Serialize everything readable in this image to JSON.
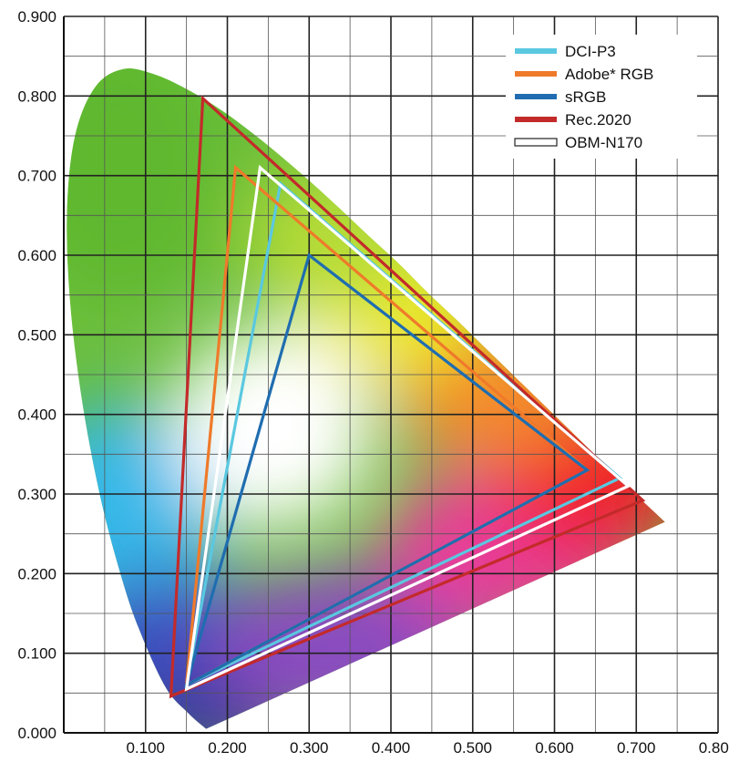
{
  "chart_data": {
    "type": "chromaticity-diagram",
    "xlim": [
      0.0,
      0.8
    ],
    "ylim": [
      0.0,
      0.9
    ],
    "grid": true,
    "x_ticks": [
      {
        "value": 0.1,
        "label": "0.100"
      },
      {
        "value": 0.2,
        "label": "0.200"
      },
      {
        "value": 0.3,
        "label": "0.300"
      },
      {
        "value": 0.4,
        "label": "0.400"
      },
      {
        "value": 0.5,
        "label": "0.500"
      },
      {
        "value": 0.6,
        "label": "0.600"
      },
      {
        "value": 0.7,
        "label": "0.700"
      },
      {
        "value": 0.8,
        "label": "0.800"
      }
    ],
    "y_ticks": [
      {
        "value": 0.0,
        "label": "0.000"
      },
      {
        "value": 0.1,
        "label": "0.100"
      },
      {
        "value": 0.2,
        "label": "0.200"
      },
      {
        "value": 0.3,
        "label": "0.300"
      },
      {
        "value": 0.4,
        "label": "0.400"
      },
      {
        "value": 0.5,
        "label": "0.500"
      },
      {
        "value": 0.6,
        "label": "0.600"
      },
      {
        "value": 0.7,
        "label": "0.700"
      },
      {
        "value": 0.8,
        "label": "0.800"
      },
      {
        "value": 0.9,
        "label": "0.900"
      }
    ],
    "legend_position": "top-right",
    "spectral_locus": [
      [
        0.174,
        0.005
      ],
      [
        0.152,
        0.025
      ],
      [
        0.124,
        0.058
      ],
      [
        0.091,
        0.133
      ],
      [
        0.069,
        0.201
      ],
      [
        0.045,
        0.295
      ],
      [
        0.023,
        0.413
      ],
      [
        0.008,
        0.538
      ],
      [
        0.004,
        0.655
      ],
      [
        0.014,
        0.751
      ],
      [
        0.039,
        0.812
      ],
      [
        0.074,
        0.834
      ],
      [
        0.114,
        0.826
      ],
      [
        0.155,
        0.806
      ],
      [
        0.193,
        0.782
      ],
      [
        0.23,
        0.754
      ],
      [
        0.266,
        0.724
      ],
      [
        0.302,
        0.692
      ],
      [
        0.337,
        0.659
      ],
      [
        0.373,
        0.624
      ],
      [
        0.409,
        0.59
      ],
      [
        0.444,
        0.554
      ],
      [
        0.479,
        0.52
      ],
      [
        0.512,
        0.487
      ],
      [
        0.548,
        0.451
      ],
      [
        0.585,
        0.414
      ],
      [
        0.626,
        0.373
      ],
      [
        0.665,
        0.334
      ],
      [
        0.705,
        0.294
      ],
      [
        0.735,
        0.265
      ]
    ],
    "series": [
      {
        "name": "DCI-P3",
        "color": "#5ac8e0",
        "points": [
          [
            0.68,
            0.32
          ],
          [
            0.265,
            0.69
          ],
          [
            0.15,
            0.06
          ]
        ]
      },
      {
        "name": "Adobe* RGB",
        "color": "#ef7a2a",
        "points": [
          [
            0.64,
            0.33
          ],
          [
            0.21,
            0.71
          ],
          [
            0.15,
            0.06
          ]
        ]
      },
      {
        "name": "sRGB",
        "color": "#1f6db0",
        "points": [
          [
            0.64,
            0.33
          ],
          [
            0.3,
            0.6
          ],
          [
            0.15,
            0.06
          ]
        ]
      },
      {
        "name": "Rec.2020",
        "color": "#c32a2a",
        "points": [
          [
            0.708,
            0.292
          ],
          [
            0.17,
            0.797
          ],
          [
            0.131,
            0.046
          ]
        ]
      },
      {
        "name": "OBM-N170",
        "color": "#ffffff",
        "points": [
          [
            0.69,
            0.31
          ],
          [
            0.24,
            0.71
          ],
          [
            0.15,
            0.055
          ]
        ]
      }
    ]
  }
}
